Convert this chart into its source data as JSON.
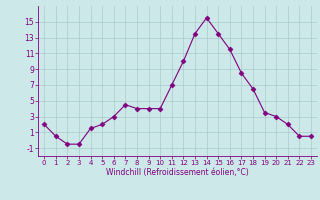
{
  "x": [
    0,
    1,
    2,
    3,
    4,
    5,
    6,
    7,
    8,
    9,
    10,
    11,
    12,
    13,
    14,
    15,
    16,
    17,
    18,
    19,
    20,
    21,
    22,
    23
  ],
  "y": [
    2,
    0.5,
    -0.5,
    -0.5,
    1.5,
    2,
    3,
    4.5,
    4,
    4,
    4,
    7,
    10,
    13.5,
    15.5,
    13.5,
    11.5,
    8.5,
    6.5,
    3.5,
    3,
    2,
    0.5,
    0.5
  ],
  "line_color": "#800080",
  "marker": "D",
  "marker_size": 2.5,
  "bg_color": "#cce8e8",
  "grid_color": "#aacccc",
  "axis_color": "#800080",
  "tick_color": "#800080",
  "label_color": "#800080",
  "xlabel": "Windchill (Refroidissement éolien,°C)",
  "xlim": [
    -0.5,
    23.5
  ],
  "ylim": [
    -2,
    17
  ],
  "yticks": [
    -1,
    1,
    3,
    5,
    7,
    9,
    11,
    13,
    15
  ],
  "xticks": [
    0,
    1,
    2,
    3,
    4,
    5,
    6,
    7,
    8,
    9,
    10,
    11,
    12,
    13,
    14,
    15,
    16,
    17,
    18,
    19,
    20,
    21,
    22,
    23
  ],
  "figsize": [
    3.2,
    2.0
  ],
  "dpi": 100
}
